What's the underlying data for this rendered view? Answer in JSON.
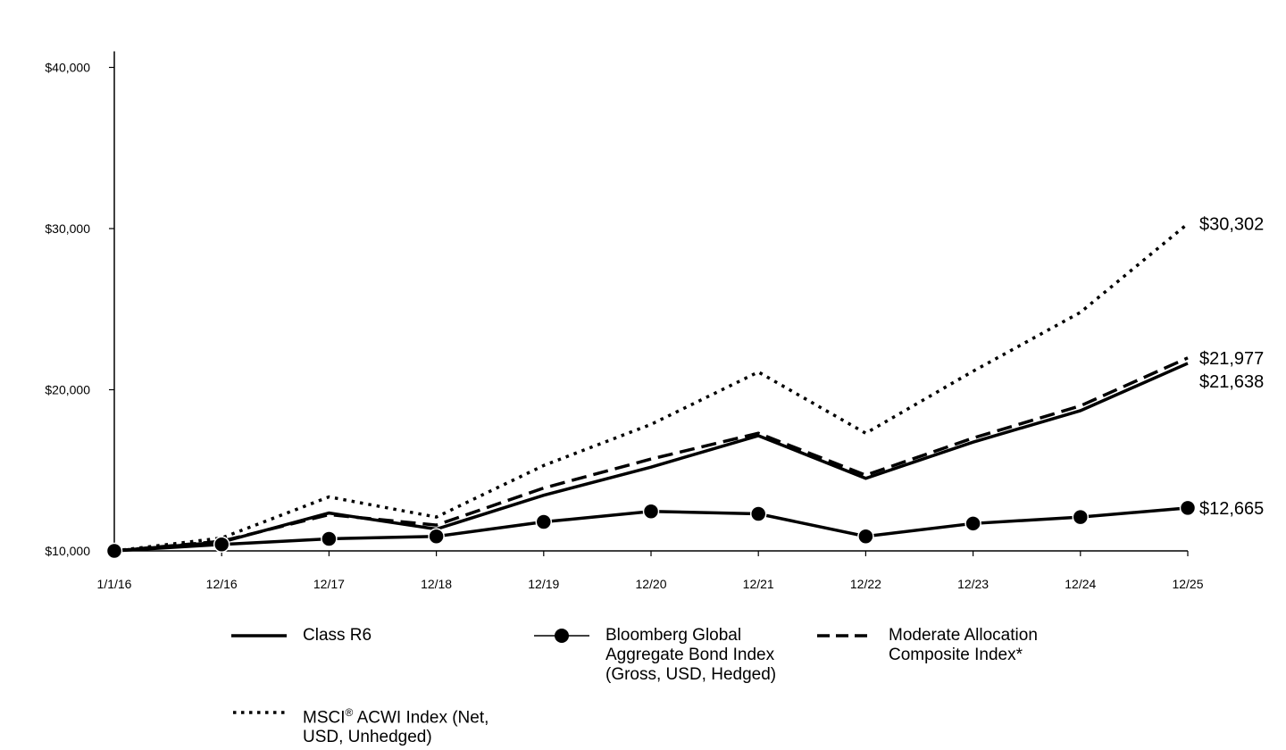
{
  "chart_data": {
    "type": "line",
    "title": "",
    "xlabel": "",
    "ylabel": "",
    "categories": [
      "1/1/16",
      "12/16",
      "12/17",
      "12/18",
      "12/19",
      "12/20",
      "12/21",
      "12/22",
      "12/23",
      "12/24",
      "12/25"
    ],
    "y_ticks": [
      "$10,000",
      "$20,000",
      "$30,000",
      "$40,000"
    ],
    "y_tick_values": [
      10000,
      20000,
      30000,
      40000
    ],
    "ylim": [
      10000,
      41000
    ],
    "grid": false,
    "legend_position": "bottom",
    "series": [
      {
        "name": "Class R6",
        "style": "solid",
        "values": [
          10000,
          10550,
          12350,
          11350,
          13450,
          15200,
          17150,
          14500,
          16750,
          18700,
          21638
        ],
        "end_label": "$21,638"
      },
      {
        "name": "Bloomberg Global Aggregate Bond Index (Gross, USD, Hedged)",
        "style": "solid-markers",
        "values": [
          10000,
          10400,
          10750,
          10900,
          11800,
          12450,
          12300,
          10900,
          11700,
          12100,
          12665
        ],
        "end_label": "$12,665"
      },
      {
        "name": "Moderate Allocation Composite Index*",
        "style": "dashed",
        "values": [
          10000,
          10600,
          12250,
          11600,
          13900,
          15700,
          17300,
          14700,
          17000,
          19000,
          21977
        ],
        "end_label": "$21,977"
      },
      {
        "name": "MSCI® ACWI Index (Net, USD, Unhedged)",
        "style": "dotted",
        "values": [
          10000,
          10800,
          13350,
          12100,
          15300,
          17850,
          21100,
          17300,
          21150,
          24800,
          30302
        ],
        "end_label": "$30,302"
      }
    ]
  },
  "legend": [
    {
      "key": "r6",
      "lines": "Class R6"
    },
    {
      "key": "bond",
      "lines": "Bloomberg Global\nAggregate Bond Index\n(Gross, USD, Hedged)"
    },
    {
      "key": "mod",
      "lines": "Moderate Allocation\nComposite Index*"
    },
    {
      "key": "msci",
      "lines_before": "MSCI",
      "sup": "®",
      "lines_after": " ACWI Index (Net,\nUSD, Unhedged)"
    }
  ]
}
